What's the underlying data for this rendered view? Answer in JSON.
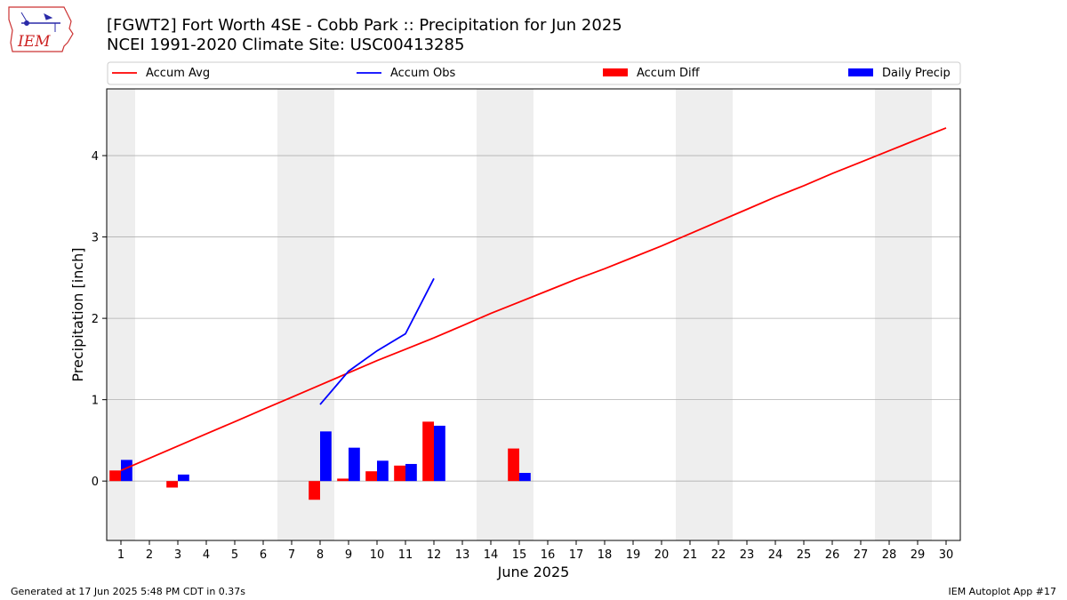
{
  "header": {
    "title_line1": "[FGWT2] Fort Worth 4SE - Cobb Park :: Precipitation for Jun 2025",
    "title_line2": "NCEI 1991-2020 Climate Site: USC00413285"
  },
  "logo": {
    "text": "IEM",
    "icon": "iowa-state-logo-icon"
  },
  "footer": {
    "left": "Generated at 17 Jun 2025 5:48 PM CDT in 0.37s",
    "right": "IEM Autoplot App #17"
  },
  "colors": {
    "avg": "#ff0000",
    "obs": "#0000ff",
    "diff": "#ff0000",
    "daily": "#0000ff",
    "weekend": "#eeeeee",
    "grid": "#b0b0b0"
  },
  "chart_data": {
    "type": "bar",
    "xlabel": "June 2025",
    "ylabel": "Precipitation [inch]",
    "xlim": [
      0.5,
      30.5
    ],
    "ylim": [
      -0.73,
      4.82
    ],
    "x_ticks": [
      1,
      2,
      3,
      4,
      5,
      6,
      7,
      8,
      9,
      10,
      11,
      12,
      13,
      14,
      15,
      16,
      17,
      18,
      19,
      20,
      21,
      22,
      23,
      24,
      25,
      26,
      27,
      28,
      29,
      30
    ],
    "y_ticks": [
      0,
      1,
      2,
      3,
      4
    ],
    "grid": "horizontal",
    "legend_position": "top",
    "weekend_shading": [
      [
        0.5,
        1.5
      ],
      [
        6.5,
        8.5
      ],
      [
        13.5,
        15.5
      ],
      [
        20.5,
        22.5
      ],
      [
        27.5,
        29.5
      ]
    ],
    "series": [
      {
        "name": "Accum Avg",
        "type": "line",
        "x": [
          1,
          2,
          3,
          4,
          5,
          6,
          7,
          8,
          9,
          10,
          11,
          12,
          13,
          14,
          15,
          16,
          17,
          18,
          19,
          20,
          21,
          22,
          23,
          24,
          25,
          26,
          27,
          28,
          29,
          30
        ],
        "values": [
          0.13,
          0.28,
          0.43,
          0.58,
          0.73,
          0.88,
          1.03,
          1.18,
          1.33,
          1.48,
          1.62,
          1.76,
          1.91,
          2.06,
          2.2,
          2.34,
          2.48,
          2.61,
          2.75,
          2.89,
          3.04,
          3.19,
          3.34,
          3.49,
          3.63,
          3.78,
          3.92,
          4.06,
          4.2,
          4.34
        ]
      },
      {
        "name": "Accum Obs",
        "type": "line",
        "x": [
          8,
          9,
          10,
          11,
          12
        ],
        "values": [
          0.94,
          1.35,
          1.6,
          1.81,
          2.49
        ]
      },
      {
        "name": "Accum Diff",
        "type": "bar",
        "x": [
          1,
          3,
          8,
          9,
          10,
          11,
          12,
          15
        ],
        "values": [
          0.13,
          -0.08,
          -0.23,
          0.03,
          0.12,
          0.19,
          0.73,
          0.4
        ]
      },
      {
        "name": "Daily Precip",
        "type": "bar",
        "x": [
          1,
          3,
          8,
          9,
          10,
          11,
          12,
          15
        ],
        "values": [
          0.26,
          0.08,
          0.61,
          0.41,
          0.25,
          0.21,
          0.68,
          0.1
        ]
      }
    ]
  }
}
